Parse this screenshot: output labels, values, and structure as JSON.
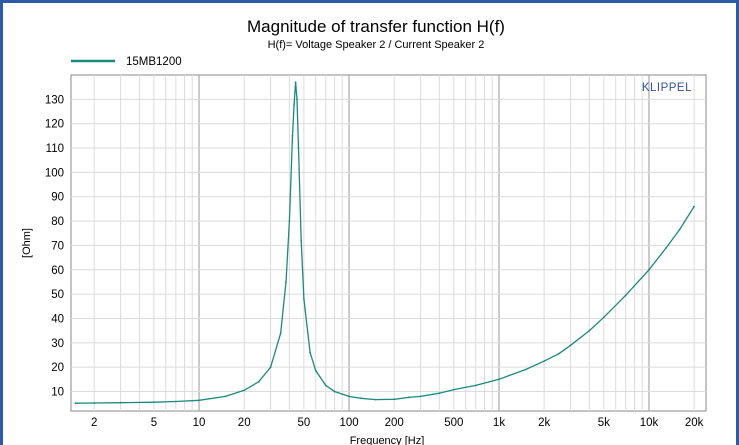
{
  "chart_data": {
    "type": "line",
    "title": "Magnitude of transfer function H(f)",
    "subtitle": "H(f)= Voltage Speaker 2 / Current Speaker 2",
    "xlabel": "Frequency [Hz]",
    "ylabel": "[Ohm]",
    "xscale": "log",
    "xlim": [
      1.4,
      24000
    ],
    "ylim": [
      2,
      140
    ],
    "grid": true,
    "legend_position": "top-left",
    "brand": "KLIPPEL",
    "x_ticks": [
      {
        "value": 2,
        "label": "2"
      },
      {
        "value": 5,
        "label": "5"
      },
      {
        "value": 10,
        "label": "10"
      },
      {
        "value": 20,
        "label": "20"
      },
      {
        "value": 50,
        "label": "50"
      },
      {
        "value": 100,
        "label": "100"
      },
      {
        "value": 200,
        "label": "200"
      },
      {
        "value": 500,
        "label": "500"
      },
      {
        "value": 1000,
        "label": "1k"
      },
      {
        "value": 2000,
        "label": "2k"
      },
      {
        "value": 5000,
        "label": "5k"
      },
      {
        "value": 10000,
        "label": "10k"
      },
      {
        "value": 20000,
        "label": "20k"
      }
    ],
    "y_ticks": [
      {
        "value": 10,
        "label": "10"
      },
      {
        "value": 20,
        "label": "20"
      },
      {
        "value": 30,
        "label": "30"
      },
      {
        "value": 40,
        "label": "40"
      },
      {
        "value": 50,
        "label": "50"
      },
      {
        "value": 60,
        "label": "60"
      },
      {
        "value": 70,
        "label": "70"
      },
      {
        "value": 80,
        "label": "80"
      },
      {
        "value": 90,
        "label": "90"
      },
      {
        "value": 100,
        "label": "100"
      },
      {
        "value": 110,
        "label": "110"
      },
      {
        "value": 120,
        "label": "120"
      },
      {
        "value": 130,
        "label": "130"
      }
    ],
    "series": [
      {
        "name": "15MB1200",
        "color": "#1a8a80",
        "x": [
          1.5,
          2,
          3,
          5,
          7,
          10,
          15,
          20,
          25,
          30,
          35,
          38,
          40,
          42,
          43,
          44,
          45,
          46,
          48,
          50,
          55,
          60,
          70,
          80,
          100,
          120,
          150,
          200,
          250,
          300,
          400,
          500,
          700,
          1000,
          1500,
          2000,
          2500,
          3000,
          4000,
          5000,
          7000,
          10000,
          13000,
          16000,
          20000
        ],
        "y": [
          5.2,
          5.3,
          5.4,
          5.6,
          5.9,
          6.4,
          8.0,
          10.5,
          14.0,
          20.0,
          34.0,
          55.0,
          80.0,
          115.0,
          128.0,
          137.0,
          130.0,
          110.0,
          72.0,
          48.0,
          26.0,
          18.5,
          12.5,
          10.0,
          8.0,
          7.2,
          6.7,
          6.8,
          7.6,
          8.0,
          9.3,
          10.8,
          12.5,
          15.0,
          19.0,
          22.5,
          25.5,
          29.0,
          35.0,
          40.5,
          49.5,
          60.0,
          69.0,
          76.5,
          86.0
        ]
      }
    ]
  }
}
